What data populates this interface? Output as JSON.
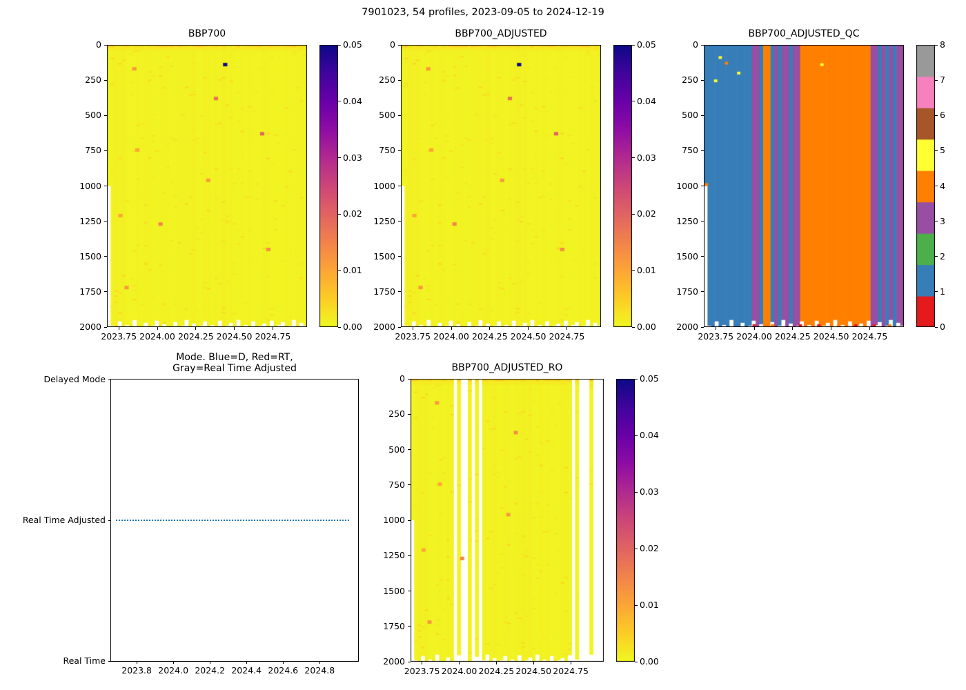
{
  "figure": {
    "title": "7901023, 54 profiles, 2023-09-05 to 2024-12-19"
  },
  "palette": {
    "plasma": [
      "#0d0887",
      "#41049d",
      "#6a00a8",
      "#8f0da4",
      "#b12a90",
      "#cc4778",
      "#e16462",
      "#f2844b",
      "#fca636",
      "#fcce25",
      "#f0f921"
    ],
    "qc_colors": [
      "#e41a1c",
      "#377eb8",
      "#4daf4a",
      "#984ea3",
      "#ff7f00",
      "#ffff33",
      "#a65628",
      "#f781bf",
      "#999999"
    ],
    "mode_line_color": "#1f77b4",
    "axis_color": "#000000",
    "background": "#ffffff"
  },
  "profiles": {
    "count": 54,
    "x_start": 2023.685,
    "x_end": 2024.96,
    "max_depth": [
      1000,
      1990,
      2000,
      1960,
      2000,
      1985,
      2000,
      1950,
      2000,
      2000,
      1970,
      2000,
      1990,
      1955,
      2000,
      1980,
      2000,
      2000,
      1965,
      2000,
      1990,
      1950,
      2000,
      1975,
      2000,
      1990,
      1960,
      2000,
      1985,
      2000,
      1955,
      2000,
      1990,
      1970,
      2000,
      1950,
      2000,
      1985,
      1995,
      1960,
      2000,
      1990,
      1975,
      2000,
      1955,
      2000,
      1985,
      1965,
      2000,
      1990,
      1950,
      2000,
      1970,
      1990
    ],
    "qc": [
      1,
      1,
      1,
      1,
      1,
      1,
      1,
      1,
      1,
      1,
      1,
      1,
      1,
      3,
      3,
      1,
      4,
      4,
      1,
      3,
      1,
      3,
      3,
      1,
      3,
      3,
      4,
      4,
      4,
      4,
      4,
      4,
      4,
      4,
      4,
      4,
      4,
      4,
      4,
      4,
      4,
      4,
      4,
      4,
      4,
      3,
      3,
      1,
      3,
      1,
      3,
      1,
      3,
      3
    ],
    "ro_present": [
      true,
      true,
      true,
      true,
      true,
      true,
      true,
      true,
      true,
      true,
      true,
      true,
      false,
      true,
      false,
      false,
      true,
      false,
      true,
      false,
      true,
      true,
      true,
      true,
      true,
      true,
      true,
      true,
      true,
      true,
      true,
      true,
      true,
      true,
      true,
      true,
      true,
      true,
      true,
      true,
      true,
      true,
      true,
      true,
      true,
      false,
      true,
      false,
      false,
      false,
      true,
      false,
      false,
      false
    ]
  },
  "chart_data": [
    {
      "id": "bbp700",
      "type": "heatmap",
      "title": "BBP700",
      "x_range": [
        2023.673,
        2024.972
      ],
      "x_ticks": [
        {
          "value": 2023.75,
          "label": "2023.75"
        },
        {
          "value": 2024.0,
          "label": "2024.00"
        },
        {
          "value": 2024.25,
          "label": "2024.25"
        },
        {
          "value": 2024.5,
          "label": "2024.50"
        },
        {
          "value": 2024.75,
          "label": "2024.75"
        }
      ],
      "y_range": [
        0,
        2000
      ],
      "y_axis_inverted": true,
      "y_ticks": [
        {
          "value": 0,
          "label": "0"
        },
        {
          "value": 250,
          "label": "250"
        },
        {
          "value": 500,
          "label": "500"
        },
        {
          "value": 750,
          "label": "750"
        },
        {
          "value": 1000,
          "label": "1000"
        },
        {
          "value": 1250,
          "label": "1250"
        },
        {
          "value": 1500,
          "label": "1500"
        },
        {
          "value": 1750,
          "label": "1750"
        },
        {
          "value": 2000,
          "label": "2000"
        }
      ],
      "colorbar": {
        "min": 0,
        "max": 0.05,
        "colormap": "plasma_r",
        "ticks": [
          {
            "value": 0,
            "label": "0.00"
          },
          {
            "value": 0.01,
            "label": "0.01"
          },
          {
            "value": 0.02,
            "label": "0.02"
          },
          {
            "value": 0.03,
            "label": "0.03"
          },
          {
            "value": 0.04,
            "label": "0.04"
          },
          {
            "value": 0.05,
            "label": "0.05"
          }
        ]
      },
      "values": {
        "background": 0.0008,
        "surface_band": 0.004,
        "surface_depth": 40,
        "anomalies": [
          {
            "x": 2024.44,
            "depth": 140,
            "value": 0.05
          },
          {
            "x": 2023.85,
            "depth": 170,
            "value": 0.012
          },
          {
            "x": 2024.38,
            "depth": 380,
            "value": 0.018
          },
          {
            "x": 2024.68,
            "depth": 630,
            "value": 0.02
          },
          {
            "x": 2023.87,
            "depth": 745,
            "value": 0.01
          },
          {
            "x": 2024.33,
            "depth": 960,
            "value": 0.012
          },
          {
            "x": 2024.02,
            "depth": 1270,
            "value": 0.015
          },
          {
            "x": 2023.76,
            "depth": 1210,
            "value": 0.01
          },
          {
            "x": 2023.8,
            "depth": 1720,
            "value": 0.012
          },
          {
            "x": 2024.72,
            "depth": 1450,
            "value": 0.014
          }
        ]
      }
    },
    {
      "id": "bbp700_adjusted",
      "type": "heatmap",
      "title": "BBP700_ADJUSTED",
      "x_range": [
        2023.673,
        2024.972
      ],
      "x_ticks": [
        {
          "value": 2023.75,
          "label": "2023.75"
        },
        {
          "value": 2024.0,
          "label": "2024.00"
        },
        {
          "value": 2024.25,
          "label": "2024.25"
        },
        {
          "value": 2024.5,
          "label": "2024.50"
        },
        {
          "value": 2024.75,
          "label": "2024.75"
        }
      ],
      "y_range": [
        0,
        2000
      ],
      "y_axis_inverted": true,
      "y_ticks": [
        {
          "value": 0,
          "label": "0"
        },
        {
          "value": 250,
          "label": "250"
        },
        {
          "value": 500,
          "label": "500"
        },
        {
          "value": 750,
          "label": "750"
        },
        {
          "value": 1000,
          "label": "1000"
        },
        {
          "value": 1250,
          "label": "1250"
        },
        {
          "value": 1500,
          "label": "1500"
        },
        {
          "value": 1750,
          "label": "1750"
        },
        {
          "value": 2000,
          "label": "2000"
        }
      ],
      "colorbar": {
        "min": 0,
        "max": 0.05,
        "colormap": "plasma_r",
        "ticks": [
          {
            "value": 0,
            "label": "0.00"
          },
          {
            "value": 0.01,
            "label": "0.01"
          },
          {
            "value": 0.02,
            "label": "0.02"
          },
          {
            "value": 0.03,
            "label": "0.03"
          },
          {
            "value": 0.04,
            "label": "0.04"
          },
          {
            "value": 0.05,
            "label": "0.05"
          }
        ]
      },
      "values": {
        "background": 0.0008,
        "surface_band": 0.004,
        "surface_depth": 40,
        "anomalies": [
          {
            "x": 2024.44,
            "depth": 140,
            "value": 0.05
          },
          {
            "x": 2023.85,
            "depth": 170,
            "value": 0.012
          },
          {
            "x": 2024.38,
            "depth": 380,
            "value": 0.018
          },
          {
            "x": 2024.68,
            "depth": 630,
            "value": 0.02
          },
          {
            "x": 2023.87,
            "depth": 745,
            "value": 0.01
          },
          {
            "x": 2024.33,
            "depth": 960,
            "value": 0.012
          },
          {
            "x": 2024.02,
            "depth": 1270,
            "value": 0.015
          },
          {
            "x": 2023.76,
            "depth": 1210,
            "value": 0.01
          },
          {
            "x": 2023.8,
            "depth": 1720,
            "value": 0.012
          },
          {
            "x": 2024.72,
            "depth": 1450,
            "value": 0.014
          }
        ]
      }
    },
    {
      "id": "bbp700_adjusted_qc",
      "type": "heatmap",
      "title": "BBP700_ADJUSTED_QC",
      "x_range": [
        2023.673,
        2024.972
      ],
      "x_ticks": [
        {
          "value": 2023.75,
          "label": "2023.75"
        },
        {
          "value": 2024.0,
          "label": "2024.00"
        },
        {
          "value": 2024.25,
          "label": "2024.25"
        },
        {
          "value": 2024.5,
          "label": "2024.50"
        },
        {
          "value": 2024.75,
          "label": "2024.75"
        }
      ],
      "y_range": [
        0,
        2000
      ],
      "y_axis_inverted": true,
      "y_ticks": [
        {
          "value": 0,
          "label": "0"
        },
        {
          "value": 250,
          "label": "250"
        },
        {
          "value": 500,
          "label": "500"
        },
        {
          "value": 750,
          "label": "750"
        },
        {
          "value": 1000,
          "label": "1000"
        },
        {
          "value": 1250,
          "label": "1250"
        },
        {
          "value": 1500,
          "label": "1500"
        },
        {
          "value": 1750,
          "label": "1750"
        },
        {
          "value": 2000,
          "label": "2000"
        }
      ],
      "colorbar": {
        "min": 0,
        "max": 8,
        "discrete": true,
        "colors": [
          "#e41a1c",
          "#377eb8",
          "#4daf4a",
          "#984ea3",
          "#ff7f00",
          "#ffff33",
          "#a65628",
          "#f781bf",
          "#999999"
        ],
        "ticks": [
          {
            "value": 0,
            "label": "0"
          },
          {
            "value": 1,
            "label": "1"
          },
          {
            "value": 2,
            "label": "2"
          },
          {
            "value": 3,
            "label": "3"
          },
          {
            "value": 4,
            "label": "4"
          },
          {
            "value": 5,
            "label": "5"
          },
          {
            "value": 6,
            "label": "6"
          },
          {
            "value": 7,
            "label": "7"
          },
          {
            "value": 8,
            "label": "8"
          }
        ]
      },
      "qc_source": "profiles.qc",
      "specks": [
        {
          "x": 2023.78,
          "depth": 90,
          "qc": 5
        },
        {
          "x": 2023.82,
          "depth": 130,
          "qc": 4
        },
        {
          "x": 2023.9,
          "depth": 200,
          "qc": 5
        },
        {
          "x": 2023.75,
          "depth": 255,
          "qc": 5
        },
        {
          "x": 2024.44,
          "depth": 140,
          "qc": 5
        },
        {
          "x": 2023.69,
          "depth": 990,
          "qc": 4
        },
        {
          "x": 2024.0,
          "depth": 1990,
          "qc": 0
        },
        {
          "x": 2024.12,
          "depth": 1990,
          "qc": 4
        },
        {
          "x": 2024.3,
          "depth": 1990,
          "qc": 0
        },
        {
          "x": 2024.42,
          "depth": 1990,
          "qc": 0
        },
        {
          "x": 2024.55,
          "depth": 1990,
          "qc": 4
        },
        {
          "x": 2024.66,
          "depth": 1990,
          "qc": 0
        },
        {
          "x": 2024.78,
          "depth": 1990,
          "qc": 0
        },
        {
          "x": 2024.88,
          "depth": 1990,
          "qc": 4
        }
      ]
    },
    {
      "id": "mode",
      "type": "line",
      "title_lines": [
        "Mode. Blue=D, Red=RT,",
        "Gray=Real Time Adjusted"
      ],
      "x_range": [
        2023.66,
        2025.01
      ],
      "x_ticks": [
        {
          "value": 2023.8,
          "label": "2023.8"
        },
        {
          "value": 2024.0,
          "label": "2024.0"
        },
        {
          "value": 2024.2,
          "label": "2024.2"
        },
        {
          "value": 2024.4,
          "label": "2024.4"
        },
        {
          "value": 2024.6,
          "label": "2024.6"
        },
        {
          "value": 2024.8,
          "label": "2024.8"
        }
      ],
      "y_categories": [
        "Delayed Mode",
        "Real Time Adjusted",
        "Real Time"
      ],
      "series": [
        {
          "name": "data_mode",
          "value": "Real Time Adjusted",
          "line_style": "dotted",
          "color": "#1f77b4",
          "x_start": 2023.685,
          "x_end": 2024.96
        }
      ]
    },
    {
      "id": "bbp700_adjusted_ro",
      "type": "heatmap",
      "title": "BBP700_ADJUSTED_RO",
      "x_range": [
        2023.673,
        2024.972
      ],
      "x_ticks": [
        {
          "value": 2023.75,
          "label": "2023.75"
        },
        {
          "value": 2024.0,
          "label": "2024.00"
        },
        {
          "value": 2024.25,
          "label": "2024.25"
        },
        {
          "value": 2024.5,
          "label": "2024.50"
        },
        {
          "value": 2024.75,
          "label": "2024.75"
        }
      ],
      "y_range": [
        0,
        2000
      ],
      "y_axis_inverted": true,
      "y_ticks": [
        {
          "value": 0,
          "label": "0"
        },
        {
          "value": 250,
          "label": "250"
        },
        {
          "value": 500,
          "label": "500"
        },
        {
          "value": 750,
          "label": "750"
        },
        {
          "value": 1000,
          "label": "1000"
        },
        {
          "value": 1250,
          "label": "1250"
        },
        {
          "value": 1500,
          "label": "1500"
        },
        {
          "value": 1750,
          "label": "1750"
        },
        {
          "value": 2000,
          "label": "2000"
        }
      ],
      "colorbar": {
        "min": 0,
        "max": 0.05,
        "colormap": "plasma_r",
        "ticks": [
          {
            "value": 0,
            "label": "0.00"
          },
          {
            "value": 0.01,
            "label": "0.01"
          },
          {
            "value": 0.02,
            "label": "0.02"
          },
          {
            "value": 0.03,
            "label": "0.03"
          },
          {
            "value": 0.04,
            "label": "0.04"
          },
          {
            "value": 0.05,
            "label": "0.05"
          }
        ]
      },
      "present_source": "profiles.ro_present",
      "values": {
        "background": 0.0008,
        "surface_band": 0.004,
        "surface_depth": 40,
        "anomalies": [
          {
            "x": 2023.85,
            "depth": 170,
            "value": 0.012
          },
          {
            "x": 2024.38,
            "depth": 380,
            "value": 0.014
          },
          {
            "x": 2023.87,
            "depth": 745,
            "value": 0.01
          },
          {
            "x": 2024.33,
            "depth": 960,
            "value": 0.012
          },
          {
            "x": 2024.02,
            "depth": 1270,
            "value": 0.015
          },
          {
            "x": 2023.76,
            "depth": 1210,
            "value": 0.01
          },
          {
            "x": 2023.8,
            "depth": 1720,
            "value": 0.012
          }
        ]
      }
    }
  ]
}
